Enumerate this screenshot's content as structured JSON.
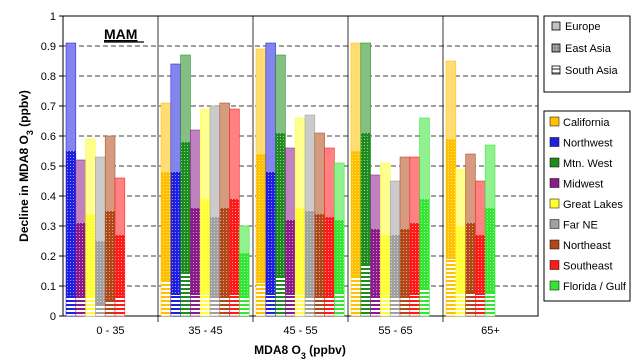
{
  "chart_data": {
    "type": "bar",
    "panel_label": "MAM",
    "ylabel_main": "Decline in MDA8 O",
    "ylabel_sub": "3",
    "ylabel_tail": "  (ppbv)",
    "xlabel_main": "MDA8 O",
    "xlabel_sub": "3",
    "xlabel_tail": "  (ppbv)",
    "ylim": [
      0,
      1
    ],
    "yticks": [
      0,
      0.1,
      0.2,
      0.3,
      0.4,
      0.5,
      0.6,
      0.7,
      0.8,
      0.9,
      1
    ],
    "ytick_labels": [
      "0",
      "0.1",
      "0.2",
      "0.3",
      "0.4",
      "0.5",
      "0.6",
      "0.7",
      "0.8",
      "0.9",
      "1"
    ],
    "grid": "horizontal-dashed",
    "categories": [
      "0 - 35",
      "35 - 45",
      "45 - 55",
      "55 - 65",
      "65+"
    ],
    "stack_components": [
      "South Asia",
      "East Asia",
      "Europe"
    ],
    "source_legend": [
      {
        "name": "Europe",
        "pattern": "europe"
      },
      {
        "name": "East Asia",
        "pattern": "eastasia"
      },
      {
        "name": "South Asia",
        "pattern": "southasia"
      }
    ],
    "region_legend": [
      {
        "name": "California",
        "color": "#FFC000"
      },
      {
        "name": "Northwest",
        "color": "#1F1FE0"
      },
      {
        "name": "Mtn. West",
        "color": "#1E8C1E"
      },
      {
        "name": "Midwest",
        "color": "#8B1A8B"
      },
      {
        "name": "Great Lakes",
        "color": "#FFFF33"
      },
      {
        "name": "Far NE",
        "color": "#A0A0A0"
      },
      {
        "name": "Northeast",
        "color": "#B0481A"
      },
      {
        "name": "Southeast",
        "color": "#FF1A1A"
      },
      {
        "name": "Florida / Gulf",
        "color": "#33E633"
      }
    ],
    "series": [
      {
        "name": "California",
        "color": "#FFC000",
        "values": [
          null,
          [
            0.12,
            0.48,
            0.71
          ],
          [
            0.11,
            0.54,
            0.89
          ],
          [
            0.13,
            0.55,
            0.91
          ],
          [
            0.19,
            0.59,
            0.85
          ]
        ]
      },
      {
        "name": "Northwest",
        "color": "#1F1FE0",
        "values": [
          [
            0.06,
            0.55,
            0.91
          ],
          [
            0.07,
            0.48,
            0.84
          ],
          [
            0.07,
            0.48,
            0.91
          ],
          null,
          null
        ]
      },
      {
        "name": "Mtn. West",
        "color": "#1E8C1E",
        "values": [
          null,
          [
            0.14,
            0.58,
            0.87
          ],
          [
            0.13,
            0.61,
            0.87
          ],
          [
            0.17,
            0.61,
            0.91
          ],
          null
        ]
      },
      {
        "name": "Midwest",
        "color": "#8B1A8B",
        "values": [
          [
            0.06,
            0.31,
            0.52
          ],
          [
            0.07,
            0.36,
            0.62
          ],
          [
            0.07,
            0.32,
            0.56
          ],
          [
            0.06,
            0.29,
            0.47
          ],
          null
        ]
      },
      {
        "name": "Great Lakes",
        "color": "#FFFF33",
        "values": [
          [
            0.06,
            0.34,
            0.59
          ],
          [
            0.07,
            0.39,
            0.69
          ],
          [
            0.07,
            0.36,
            0.66
          ],
          [
            0.06,
            0.27,
            0.51
          ],
          [
            0.08,
            0.3,
            0.49
          ]
        ]
      },
      {
        "name": "Far NE",
        "color": "#A0A0A0",
        "values": [
          [
            0.04,
            0.25,
            0.53
          ],
          [
            0.06,
            0.33,
            0.7
          ],
          [
            0.06,
            0.35,
            0.67
          ],
          [
            0.06,
            0.27,
            0.45
          ],
          null
        ]
      },
      {
        "name": "Northeast",
        "color": "#B0481A",
        "values": [
          [
            0.05,
            0.35,
            0.6
          ],
          [
            0.06,
            0.36,
            0.71
          ],
          [
            0.06,
            0.34,
            0.61
          ],
          [
            0.06,
            0.29,
            0.53
          ],
          [
            0.08,
            0.31,
            0.54
          ]
        ]
      },
      {
        "name": "Southeast",
        "color": "#FF1A1A",
        "values": [
          [
            0.06,
            0.27,
            0.46
          ],
          [
            0.07,
            0.39,
            0.69
          ],
          [
            0.06,
            0.33,
            0.56
          ],
          [
            0.07,
            0.31,
            0.53
          ],
          [
            0.07,
            0.27,
            0.45
          ]
        ]
      },
      {
        "name": "Florida / Gulf",
        "color": "#33E633",
        "values": [
          null,
          [
            0.06,
            0.21,
            0.3
          ],
          [
            0.08,
            0.32,
            0.51
          ],
          [
            0.09,
            0.39,
            0.66
          ],
          [
            0.08,
            0.36,
            0.57
          ]
        ]
      }
    ],
    "group_order": [
      [
        "Northwest",
        "Midwest",
        "Great Lakes",
        "Far NE",
        "Northeast",
        "Southeast"
      ],
      [
        "California",
        "Northwest",
        "Mtn. West",
        "Midwest",
        "Great Lakes",
        "Far NE",
        "Northeast",
        "Southeast",
        "Florida / Gulf"
      ],
      [
        "California",
        "Northwest",
        "Mtn. West",
        "Midwest",
        "Great Lakes",
        "Far NE",
        "Northeast",
        "Southeast",
        "Florida / Gulf"
      ],
      [
        "California",
        "Mtn. West",
        "Midwest",
        "Great Lakes",
        "Far NE",
        "Northeast",
        "Southeast",
        "Florida / Gulf"
      ],
      [
        "California",
        "Great Lakes",
        "Northeast",
        "Southeast",
        "Florida / Gulf"
      ]
    ]
  }
}
